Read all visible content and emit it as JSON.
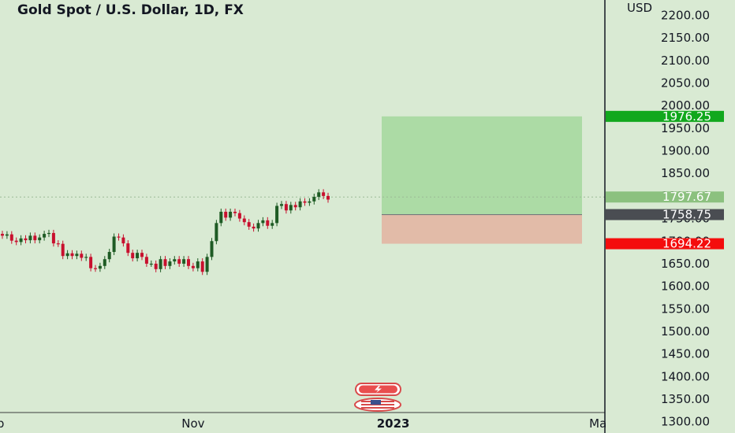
{
  "header": {
    "title": "Gold Spot / U.S. Dollar, 1D, FX",
    "currency": "USD"
  },
  "colors": {
    "background": "#d9ead3",
    "up_candle": "#1e5b24",
    "down_candle": "#c8102e",
    "profit_zone": "#acdba5",
    "loss_zone": "#e2bba8",
    "target_label": "#11a81d",
    "current_label": "#8cc17f",
    "entry_label": "#4a4d52",
    "stop_label": "#f40d0d"
  },
  "chart_data": {
    "type": "candlestick",
    "title": "Gold Spot / U.S. Dollar, 1D, FX",
    "ylabel": "USD",
    "ylim": [
      1275,
      2234
    ],
    "y_ticks": [
      1300,
      1350,
      1400,
      1450,
      1500,
      1550,
      1600,
      1650,
      1700,
      1750,
      1800,
      1850,
      1900,
      1950,
      2000,
      2050,
      2100,
      2150,
      2200
    ],
    "y_tick_labels": [
      "1300.00",
      "1350.00",
      "1400.00",
      "1450.00",
      "1500.00",
      "1550.00",
      "1600.00",
      "1650.00",
      "1700.00",
      "1750.00",
      "1800.00",
      "1850.00",
      "1900.00",
      "1950.00",
      "2000.00",
      "2050.00",
      "2100.00",
      "2150.00",
      "2200.00"
    ],
    "x_ticks": [
      {
        "label": "Sep",
        "bar": -2,
        "bold": false
      },
      {
        "label": "Nov",
        "bar": 41,
        "bold": false
      },
      {
        "label": "2023",
        "bar": 84,
        "bold": true
      },
      {
        "label": "Ma",
        "bar": 128,
        "bold": false
      }
    ],
    "closes": [
      1712,
      1715,
      1701,
      1698,
      1706,
      1702,
      1712,
      1702,
      1708,
      1716,
      1718,
      1695,
      1694,
      1667,
      1673,
      1667,
      1672,
      1663,
      1665,
      1640,
      1639,
      1645,
      1660,
      1676,
      1710,
      1708,
      1695,
      1674,
      1662,
      1674,
      1665,
      1650,
      1650,
      1638,
      1660,
      1645,
      1655,
      1660,
      1650,
      1660,
      1645,
      1640,
      1655,
      1632,
      1665,
      1700,
      1740,
      1765,
      1752,
      1765,
      1762,
      1750,
      1742,
      1732,
      1728,
      1740,
      1746,
      1734,
      1740,
      1778,
      1782,
      1768,
      1780,
      1775,
      1788,
      1785,
      1788,
      1798,
      1808,
      1800,
      1792
    ],
    "position": {
      "target": 1976.25,
      "entry": 1758.75,
      "stop": 1694.22,
      "current": 1797.67,
      "labels": {
        "target": "1976.25",
        "entry": "1758.75",
        "stop": "1694.22",
        "current": "1797.67"
      }
    }
  }
}
